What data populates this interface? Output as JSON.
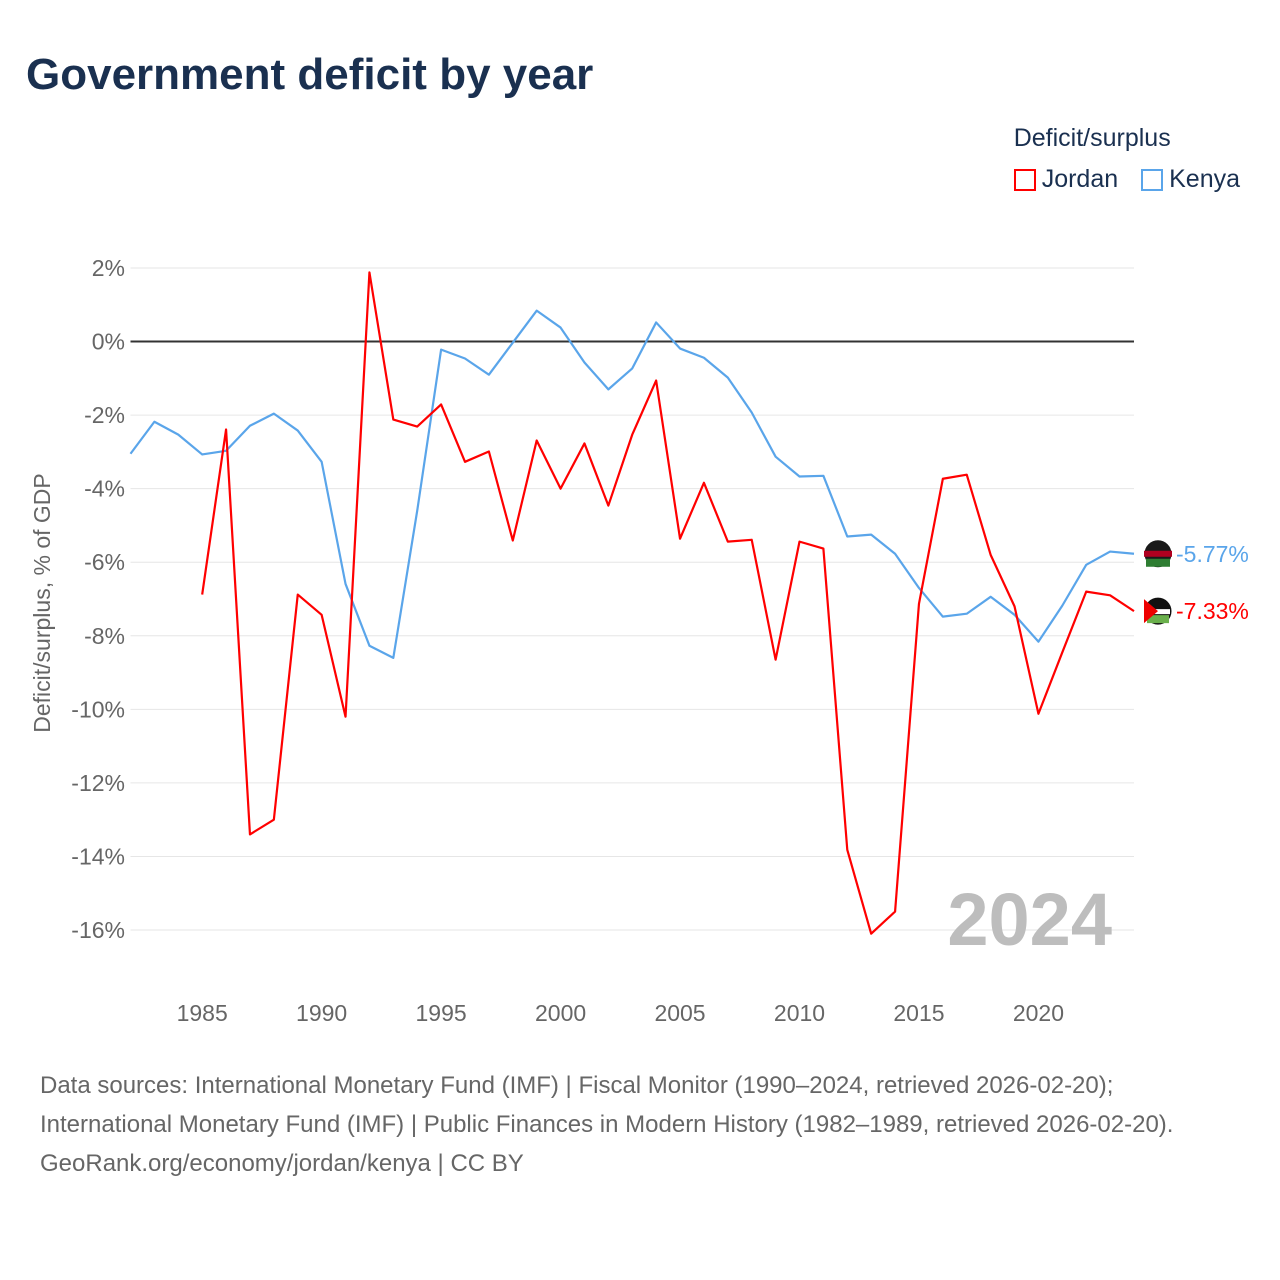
{
  "title": "Government deficit by year",
  "legend": {
    "title": "Deficit/surplus",
    "items": [
      "Jordan",
      "Kenya"
    ]
  },
  "colors": {
    "Jordan": "#ff0000",
    "Kenya": "#5aa5ea"
  },
  "chart_data": {
    "type": "line",
    "title": "Government deficit by year",
    "ylabel": "Deficit/surplus, % of GDP",
    "xlabel": "",
    "ylim": [
      -16,
      2
    ],
    "xlim": [
      1982,
      2024
    ],
    "yticks": [
      "2%",
      "0%",
      "-2%",
      "-4%",
      "-6%",
      "-8%",
      "-10%",
      "-12%",
      "-14%",
      "-16%"
    ],
    "ytick_values": [
      2,
      0,
      -2,
      -4,
      -6,
      -8,
      -10,
      -12,
      -14,
      -16
    ],
    "xticks": [
      "1985",
      "1990",
      "1995",
      "2000",
      "2005",
      "2010",
      "2015",
      "2020"
    ],
    "xtick_values": [
      1985,
      1990,
      1995,
      2000,
      2005,
      2010,
      2015,
      2020
    ],
    "year_label": "2024",
    "series": [
      {
        "name": "Kenya",
        "end_label": "-5.77%",
        "start": 1982,
        "values": [
          -3.05,
          -2.18,
          -2.53,
          -3.07,
          -2.97,
          -2.29,
          -1.96,
          -2.42,
          -3.27,
          -6.59,
          -8.27,
          -8.6,
          -4.6,
          -0.22,
          -0.46,
          -0.9,
          -0.03,
          0.84,
          0.38,
          -0.57,
          -1.3,
          -0.73,
          0.52,
          -0.19,
          -0.44,
          -0.98,
          -1.93,
          -3.13,
          -3.67,
          -3.65,
          -5.3,
          -5.25,
          -5.77,
          -6.7,
          -7.48,
          -7.4,
          -6.94,
          -7.43,
          -8.16,
          -7.18,
          -6.07,
          -5.71,
          -5.77
        ]
      },
      {
        "name": "Jordan",
        "end_label": "-7.33%",
        "start": 1985,
        "values": [
          -6.88,
          -2.39,
          -13.4,
          -13.0,
          -6.88,
          -7.43,
          -10.2,
          1.88,
          -2.12,
          -2.31,
          -1.71,
          -3.27,
          -2.99,
          -5.41,
          -2.69,
          -4.0,
          -2.77,
          -4.46,
          -2.53,
          -1.06,
          -5.36,
          -3.84,
          -5.44,
          -5.39,
          -8.65,
          -5.44,
          -5.63,
          -13.82,
          -16.1,
          -15.5,
          -7.13,
          -3.73,
          -3.62,
          -5.8,
          -7.2,
          -10.12,
          -8.45,
          -6.8,
          -6.9,
          -7.33
        ]
      }
    ]
  },
  "footer": {
    "sources": "Data sources: International Monetary Fund (IMF) | Fiscal Monitor (1990–2024, retrieved 2026-02-20); International Monetary Fund (IMF) | Public Finances in Modern History (1982–1989, retrieved 2026-02-20).",
    "credit": "GeoRank.org/economy/jordan/kenya | CC BY"
  }
}
